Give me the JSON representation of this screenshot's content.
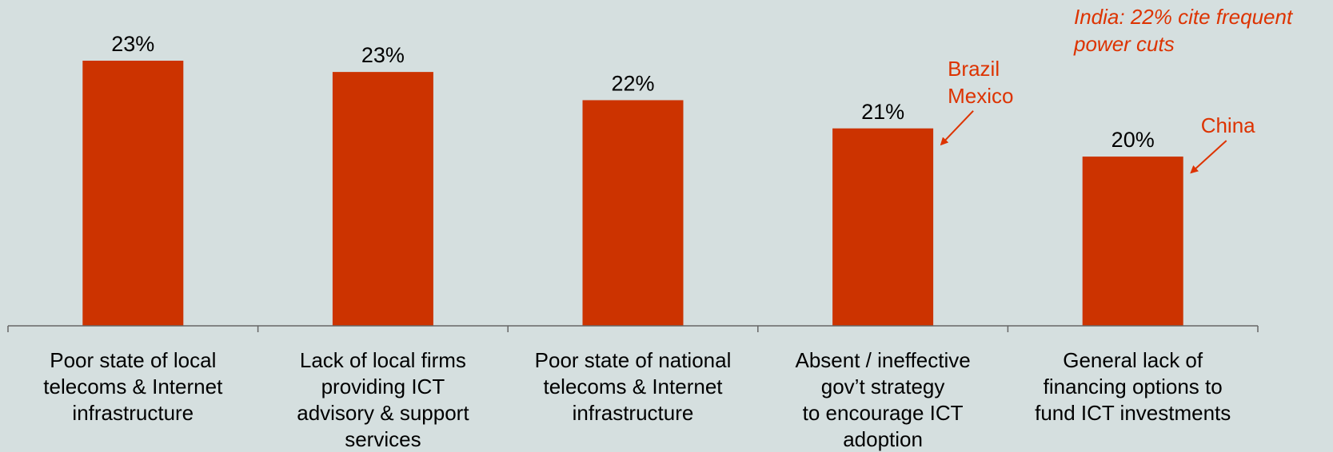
{
  "colors": {
    "bar": "#cc3300",
    "accent": "#dd3300",
    "axis": "#666666"
  },
  "note": "India: 22% cite frequent power cuts",
  "chart_data": {
    "type": "bar",
    "categories": [
      [
        "Poor state of local",
        "telecoms & Internet",
        "infrastructure"
      ],
      [
        "Lack of local firms",
        "providing ICT",
        "advisory & support",
        "services"
      ],
      [
        "Poor state of national",
        "telecoms & Internet",
        "infrastructure"
      ],
      [
        "Absent / ineffective",
        "gov’t strategy",
        "to encourage ICT",
        "adoption"
      ],
      [
        "General lack of",
        "financing options to",
        "fund ICT investments"
      ]
    ],
    "values": [
      23.4,
      23.0,
      22.0,
      21.0,
      20.0
    ],
    "data_labels": [
      "23%",
      "23%",
      "22%",
      "21%",
      "20%"
    ],
    "ylim": [
      14.0,
      24.0
    ],
    "title": "",
    "xlabel": "",
    "ylabel": "",
    "grid": false,
    "annotations": [
      {
        "category_index": 3,
        "lines": [
          "Brazil",
          "Mexico"
        ]
      },
      {
        "category_index": 4,
        "lines": [
          "China"
        ]
      }
    ]
  }
}
